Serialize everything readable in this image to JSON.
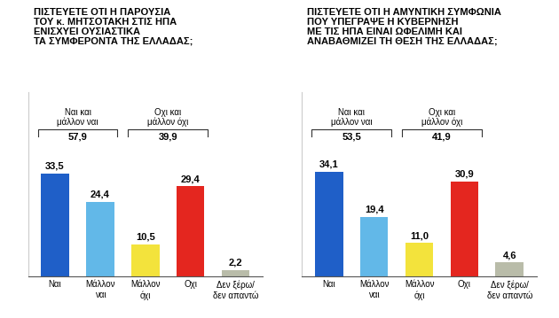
{
  "chart_data": [
    {
      "type": "bar",
      "title": "ΠΙΣΤΕΥΕΤΕ ΟΤΙ Η ΠΑΡΟΥΣΙΑ\nΤΟΥ κ. ΜΗΤΣΟΤΑΚΗ ΣΤΙΣ ΗΠΑ\nΕΝΙΣΧΥΕΙ ΟΥΣΙΑΣΤΙΚΑ\nΤΑ ΣΥΜΦΕΡΟΝΤΑ ΤΗΣ ΕΛΛΑΔΑΣ;",
      "categories": [
        "Ναι",
        "Μάλλον\nναι",
        "Μάλλον\nόχι",
        "Οχι",
        "Δεν ξέρω/\nδεν απαντώ"
      ],
      "values": [
        33.5,
        24.4,
        10.5,
        29.4,
        2.2
      ],
      "value_labels": [
        "33,5",
        "24,4",
        "10,5",
        "29,4",
        "2,2"
      ],
      "colors": [
        "#1f5fc8",
        "#62b8e8",
        "#f3e33c",
        "#e4261f",
        "#b9bca9"
      ],
      "groups": [
        {
          "label": "Ναι και\nμάλλον ναι",
          "value": 57.9,
          "value_label": "57,9",
          "members": [
            0,
            1
          ]
        },
        {
          "label": "Οχι και\nμάλλον όχι",
          "value": 39.9,
          "value_label": "39,9",
          "members": [
            2,
            3
          ]
        }
      ],
      "ylim": [
        0,
        60
      ],
      "yticks": [],
      "tick_labels": "x",
      "data_labels": true,
      "grid": false
    },
    {
      "type": "bar",
      "title": "ΠΙΣΤΕΥΕΤΕ ΟΤΙ Η ΑΜΥΝΤΙΚΗ ΣΥΜΦΩΝΙΑ\nΠΟΥ ΥΠΕΓΡΑΨΕ Η ΚΥΒΕΡΝΗΣΗ\nΜΕ ΤΙΣ ΗΠΑ ΕΙΝΑΙ ΩΦΕΛΙΜΗ ΚΑΙ\nΑΝΑΒΑΘΜΙΖΕΙ ΤΗ ΘΕΣΗ ΤΗΣ ΕΛΛΑΔΑΣ;",
      "categories": [
        "Ναι",
        "Μάλλον\nναι",
        "Μάλλον\nόχι",
        "Οχι",
        "Δεν ξέρω/\nδεν απαντώ"
      ],
      "values": [
        34.1,
        19.4,
        11.0,
        30.9,
        4.6
      ],
      "value_labels": [
        "34,1",
        "19,4",
        "11,0",
        "30,9",
        "4,6"
      ],
      "colors": [
        "#1f5fc8",
        "#62b8e8",
        "#f3e33c",
        "#e4261f",
        "#b9bca9"
      ],
      "groups": [
        {
          "label": "Ναι και\nμάλλον ναι",
          "value": 53.5,
          "value_label": "53,5",
          "members": [
            0,
            1
          ]
        },
        {
          "label": "Οχι και\nμάλλον όχι",
          "value": 41.9,
          "value_label": "41,9",
          "members": [
            2,
            3
          ]
        }
      ],
      "ylim": [
        0,
        60
      ],
      "yticks": [],
      "tick_labels": "x",
      "data_labels": true,
      "grid": false
    }
  ]
}
